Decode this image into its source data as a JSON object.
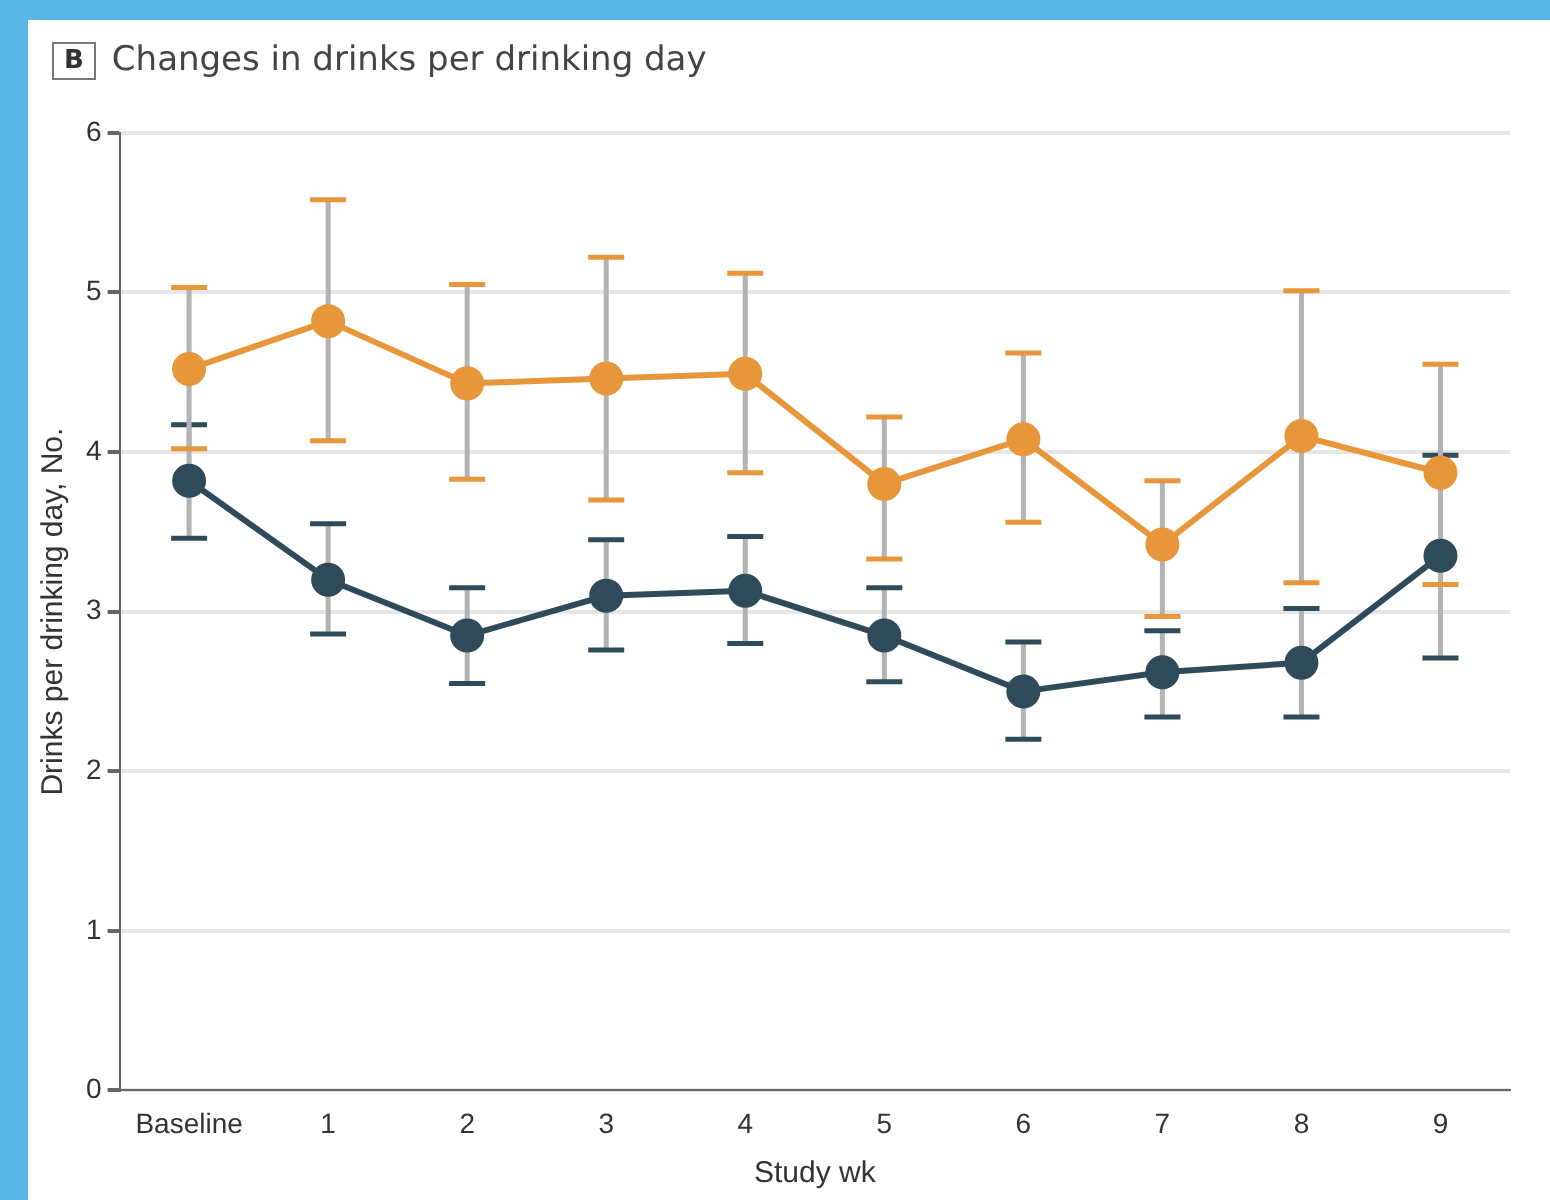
{
  "chart_data": {
    "type": "line",
    "title": "Changes in drinks per drinking day",
    "annotations": [
      "B"
    ],
    "xlabel": "Study wk",
    "ylabel": "Drinks per drinking day, No.",
    "categories": [
      "Baseline",
      "1",
      "2",
      "3",
      "4",
      "5",
      "6",
      "7",
      "8",
      "9"
    ],
    "series": [
      {
        "color": "#e8963a",
        "values": [
          4.52,
          4.82,
          4.43,
          4.46,
          4.49,
          3.8,
          4.08,
          3.42,
          4.1,
          3.87
        ],
        "errors": [
          [
            4.02,
            5.03
          ],
          [
            4.07,
            5.58
          ],
          [
            3.83,
            5.05
          ],
          [
            3.7,
            5.22
          ],
          [
            3.87,
            5.12
          ],
          [
            3.33,
            4.22
          ],
          [
            3.56,
            4.62
          ],
          [
            2.97,
            3.82
          ],
          [
            3.18,
            5.01
          ],
          [
            3.17,
            4.55
          ]
        ]
      },
      {
        "color": "#2f4b5a",
        "values": [
          3.82,
          3.2,
          2.85,
          3.1,
          3.13,
          2.85,
          2.5,
          2.62,
          2.68,
          3.35
        ],
        "errors": [
          [
            3.46,
            4.17
          ],
          [
            2.86,
            3.55
          ],
          [
            2.55,
            3.15
          ],
          [
            2.76,
            3.45
          ],
          [
            2.8,
            3.47
          ],
          [
            2.56,
            3.15
          ],
          [
            2.2,
            2.81
          ],
          [
            2.34,
            2.88
          ],
          [
            2.34,
            3.02
          ],
          [
            2.71,
            3.98
          ]
        ]
      }
    ],
    "ylim": [
      0,
      6
    ],
    "yticks": [
      0,
      1,
      2,
      3,
      4,
      5,
      6
    ],
    "grid": "y",
    "legend": false,
    "marker": "circle",
    "line_style": "solid"
  }
}
